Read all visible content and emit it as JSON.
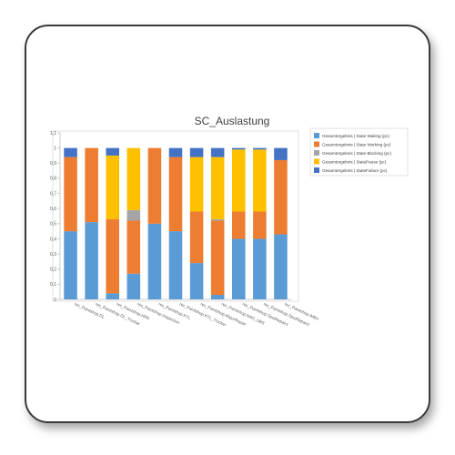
{
  "chart_data": {
    "type": "bar",
    "stacked": true,
    "title": "SC_Auslastung",
    "xlabel": "",
    "ylabel": "",
    "ylim": [
      0,
      1.1
    ],
    "yticks": [
      "0",
      "0,1",
      "0,2",
      "0,3",
      "0,4",
      "0,5",
      "0,6",
      "0,7",
      "0,8",
      "0,9",
      "1",
      "1,1"
    ],
    "grid": false,
    "legend_position": "right",
    "categories": [
      "rec_Paintshop.DL",
      "rec_Paintshop.DL_Trocker",
      "rec_Paintshop.HRK",
      "rec_Paintshop.Inspection",
      "rec_Paintshop.KTL",
      "rec_Paintshop.KTL_Trocker",
      "rec_Paintshop.MajorRepair",
      "rec_Paintshop.NAO_UBS",
      "rec_Paintshop.SpotRepair1",
      "rec_Paintshop.SpotRepair2",
      "rec_Paintshop.WBH"
    ],
    "series": [
      {
        "name": "Gesamtergebnis | State Waiting (pc)",
        "color": "#5b9bd5",
        "values": [
          0.45,
          0.51,
          0.04,
          0.17,
          0.5,
          0.45,
          0.24,
          0.03,
          0.4,
          0.4,
          0.43
        ]
      },
      {
        "name": "Gesamtergebnis | State Working (pc)",
        "color": "#ed7d31",
        "values": [
          0.49,
          0.49,
          0.49,
          0.35,
          0.5,
          0.49,
          0.34,
          0.49,
          0.18,
          0.18,
          0.49
        ]
      },
      {
        "name": "Gesamtergebnis | State Blocking (pc)",
        "color": "#a5a5a5",
        "values": [
          0,
          0,
          0,
          0.07,
          0,
          0,
          0,
          0.01,
          0,
          0,
          0
        ]
      },
      {
        "name": "Gesamtergebnis | StatePause (pc)",
        "color": "#ffc000",
        "values": [
          0,
          0,
          0.42,
          0.41,
          0,
          0,
          0.36,
          0.41,
          0.41,
          0.41,
          0
        ]
      },
      {
        "name": "Gesamtergebnis | StateFailure (pc)",
        "color": "#4472c4",
        "values": [
          0.06,
          0,
          0.05,
          0,
          0,
          0.06,
          0.06,
          0.06,
          0.01,
          0.01,
          0.08
        ]
      }
    ]
  }
}
